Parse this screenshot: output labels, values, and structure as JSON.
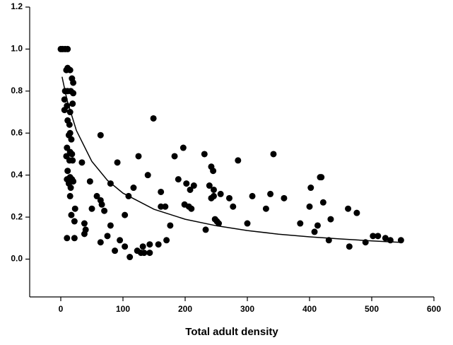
{
  "chart_data": {
    "type": "scatter",
    "xlabel": "Total adult density",
    "xlim": [
      -50,
      600
    ],
    "ylim": [
      -0.18,
      1.2
    ],
    "xticks": [
      0,
      100,
      200,
      300,
      400,
      500,
      600
    ],
    "yticks": [
      {
        "value": 0,
        "label": "0.0"
      },
      0.2,
      0.4,
      0.6,
      0.8,
      {
        "value": 1,
        "label": "1.0"
      },
      1.2
    ],
    "color": "#000000",
    "x": [
      0,
      3,
      7,
      11,
      11,
      9,
      15,
      18,
      20,
      7,
      11,
      16,
      20,
      6,
      10,
      19,
      6,
      15,
      11,
      14,
      13,
      15,
      17,
      10,
      15,
      18,
      9,
      14,
      19,
      11,
      15,
      10,
      18,
      13,
      20,
      16,
      15,
      17,
      22,
      23,
      10,
      22,
      34,
      38,
      40,
      38,
      47,
      50,
      58,
      64,
      66,
      64,
      70,
      75,
      64,
      80,
      80,
      87,
      91,
      95,
      103,
      103,
      109,
      111,
      117,
      123,
      125,
      129,
      132,
      134,
      140,
      143,
      143,
      149,
      157,
      161,
      161,
      168,
      170,
      176,
      183,
      189,
      197,
      199,
      202,
      206,
      210,
      208,
      214,
      231,
      233,
      239,
      242,
      245,
      242,
      246,
      248,
      251,
      254,
      246,
      257,
      271,
      277,
      285,
      300,
      308,
      330,
      337,
      342,
      359,
      385,
      402,
      400,
      408,
      413,
      417,
      419,
      422,
      431,
      434,
      462,
      464,
      476,
      490,
      502,
      510,
      522,
      530,
      547
    ],
    "y": [
      1.0,
      1.0,
      1.0,
      1.0,
      0.91,
      0.9,
      0.9,
      0.86,
      0.84,
      0.8,
      0.8,
      0.8,
      0.79,
      0.76,
      0.73,
      0.74,
      0.71,
      0.7,
      0.66,
      0.64,
      0.59,
      0.6,
      0.57,
      0.53,
      0.51,
      0.5,
      0.49,
      0.47,
      0.47,
      0.42,
      0.39,
      0.38,
      0.38,
      0.36,
      0.37,
      0.34,
      0.3,
      0.21,
      0.18,
      0.24,
      0.1,
      0.1,
      0.46,
      0.17,
      0.14,
      0.12,
      0.37,
      0.24,
      0.3,
      0.28,
      0.26,
      0.59,
      0.23,
      0.11,
      0.08,
      0.36,
      0.16,
      0.04,
      0.46,
      0.09,
      0.21,
      0.06,
      0.3,
      0.01,
      0.34,
      0.04,
      0.49,
      0.03,
      0.06,
      0.03,
      0.4,
      0.03,
      0.07,
      0.67,
      0.07,
      0.32,
      0.25,
      0.25,
      0.09,
      0.16,
      0.49,
      0.38,
      0.53,
      0.26,
      0.36,
      0.25,
      0.24,
      0.33,
      0.35,
      0.5,
      0.14,
      0.35,
      0.44,
      0.42,
      0.29,
      0.33,
      0.19,
      0.18,
      0.17,
      0.3,
      0.31,
      0.29,
      0.25,
      0.47,
      0.17,
      0.3,
      0.24,
      0.31,
      0.5,
      0.29,
      0.17,
      0.34,
      0.25,
      0.13,
      0.16,
      0.39,
      0.39,
      0.27,
      0.09,
      0.19,
      0.24,
      0.06,
      0.22,
      0.08,
      0.11,
      0.11,
      0.1,
      0.09,
      0.09
    ],
    "fit": {
      "x": [
        2,
        10,
        25,
        50,
        75,
        100,
        150,
        200,
        250,
        300,
        350,
        400,
        450,
        500,
        545
      ],
      "y": [
        0.868,
        0.758,
        0.613,
        0.465,
        0.375,
        0.314,
        0.237,
        0.19,
        0.159,
        0.136,
        0.119,
        0.106,
        0.096,
        0.087,
        0.08
      ]
    }
  }
}
